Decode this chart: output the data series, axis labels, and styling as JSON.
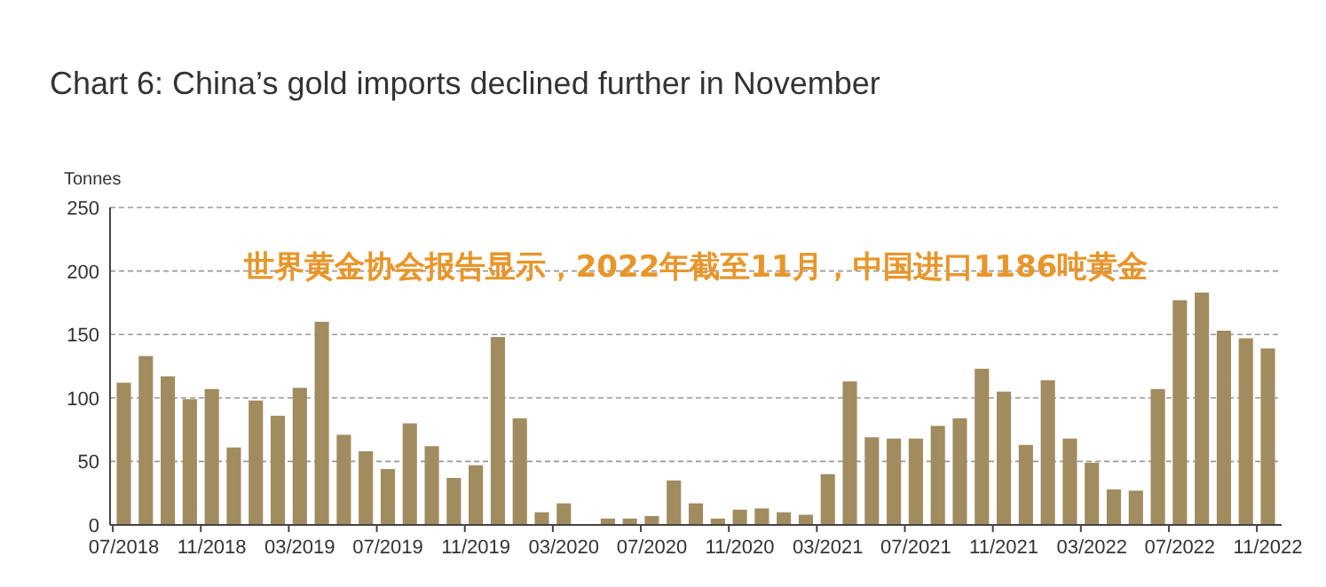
{
  "chart_data": {
    "type": "bar",
    "title": "Chart 6: China’s gold imports declined further in November",
    "ylabel": "Tonnes",
    "categories": [
      "07/2018",
      null,
      null,
      null,
      "11/2018",
      null,
      null,
      null,
      "03/2019",
      null,
      null,
      null,
      "07/2019",
      null,
      null,
      null,
      "11/2019",
      null,
      null,
      null,
      "03/2020",
      null,
      null,
      null,
      "07/2020",
      null,
      null,
      null,
      "11/2020",
      null,
      null,
      null,
      "03/2021",
      null,
      null,
      null,
      "07/2021",
      null,
      null,
      null,
      "11/2021",
      null,
      null,
      null,
      "03/2022",
      null,
      null,
      null,
      "07/2022",
      null,
      null,
      null,
      "11/2022"
    ],
    "values": [
      112,
      133,
      117,
      99,
      107,
      61,
      98,
      86,
      108,
      160,
      71,
      58,
      44,
      80,
      62,
      37,
      47,
      148,
      84,
      10,
      17,
      null,
      5,
      5,
      7,
      35,
      17,
      5,
      12,
      13,
      10,
      8,
      40,
      113,
      69,
      68,
      68,
      78,
      84,
      123,
      105,
      63,
      114,
      68,
      49,
      28,
      27,
      107,
      177,
      183,
      153,
      147,
      139
    ],
    "color": "#a08c5f",
    "ylim": [
      0,
      250
    ],
    "yticks": [
      0,
      50,
      100,
      150,
      200,
      250
    ],
    "grid": "y",
    "annotations": [
      "世界黄金协会报告显示，2022年截至11月，中国进口1186吨黄金"
    ]
  }
}
